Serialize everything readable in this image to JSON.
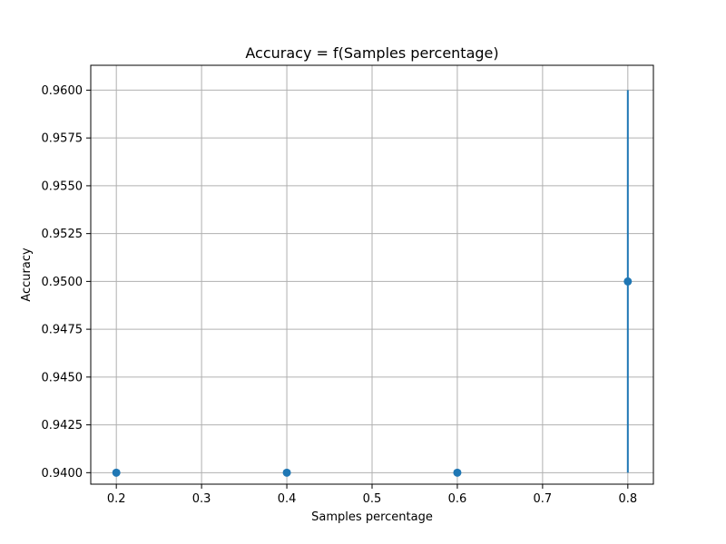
{
  "chart_data": {
    "type": "scatter",
    "title": "Accuracy = f(Samples percentage)",
    "xlabel": "Samples percentage",
    "ylabel": "Accuracy",
    "xlim": [
      0.17,
      0.83
    ],
    "ylim": [
      0.9394,
      0.9613
    ],
    "xticks": [
      "0.2",
      "0.3",
      "0.4",
      "0.5",
      "0.6",
      "0.7",
      "0.8"
    ],
    "yticks": [
      "0.9400",
      "0.9425",
      "0.9450",
      "0.9475",
      "0.9500",
      "0.9525",
      "0.9550",
      "0.9575",
      "0.9600"
    ],
    "grid": true,
    "color": "#1f77b4",
    "x": [
      0.2,
      0.4,
      0.6,
      0.8
    ],
    "y": [
      0.94,
      0.94,
      0.94,
      0.95
    ],
    "error_bars": [
      {
        "x": 0.8,
        "low": 0.94,
        "high": 0.96
      }
    ]
  }
}
